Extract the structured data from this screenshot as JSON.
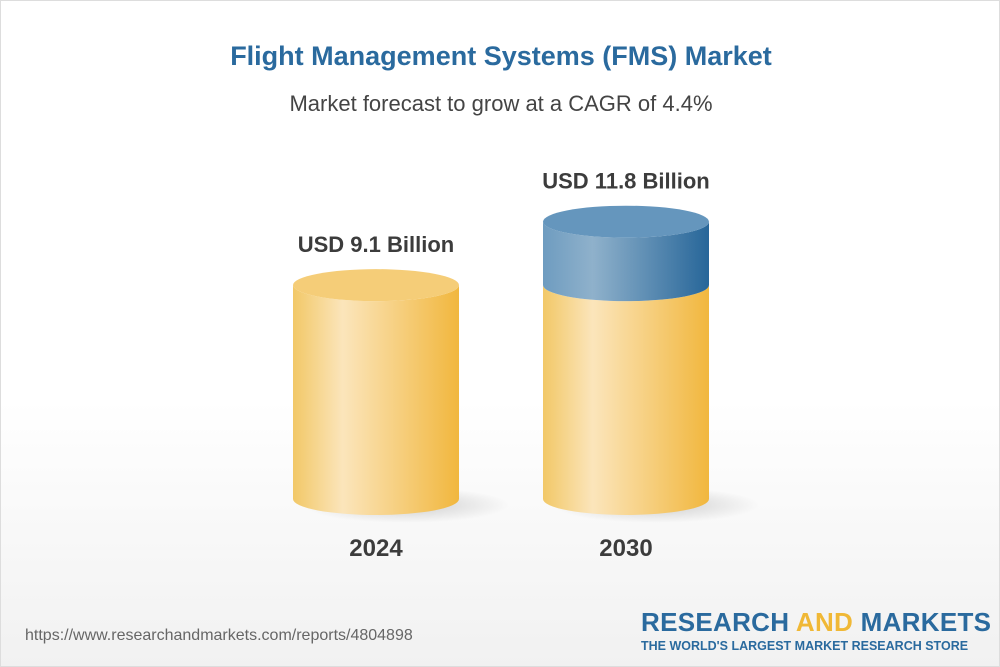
{
  "title": "Flight Management Systems (FMS) Market",
  "subtitle": "Market forecast to grow at a CAGR of 4.4%",
  "chart_data": {
    "type": "bar",
    "style": "3d-cylinder",
    "categories": [
      "2024",
      "2030"
    ],
    "values": [
      9.1,
      11.8
    ],
    "data_labels": [
      "USD 9.1 Billion",
      "USD 11.8 Billion"
    ],
    "unit": "USD Billion",
    "cagr": "4.4%",
    "colors": {
      "base": "#f2bc45",
      "growth": "#2a6a9e"
    }
  },
  "footer": {
    "url": "https://www.researchandmarkets.com/reports/4804898"
  },
  "logo": {
    "part1": "RESEARCH ",
    "part2": "AND",
    "part3": " MARKETS",
    "tagline": "THE WORLD'S LARGEST MARKET RESEARCH STORE"
  }
}
